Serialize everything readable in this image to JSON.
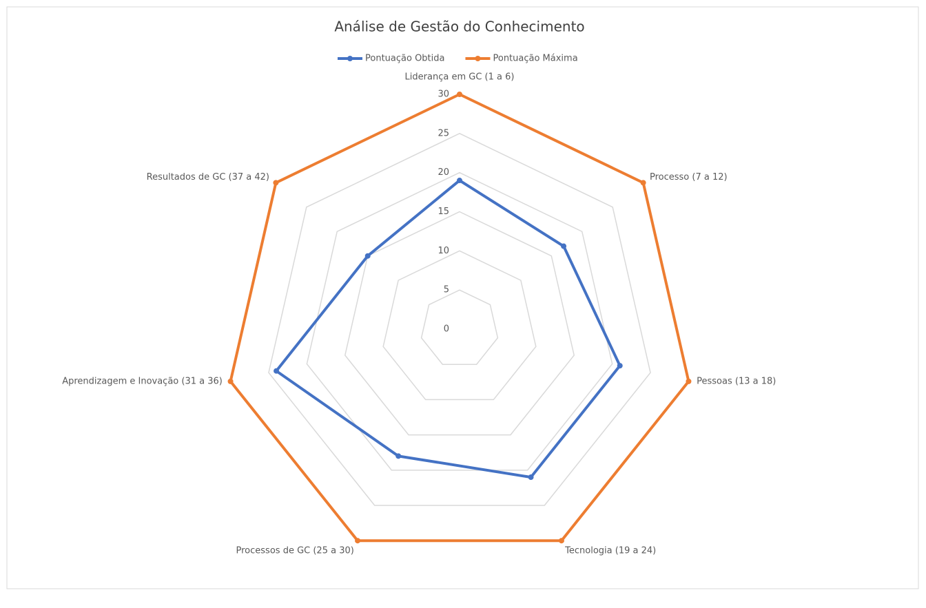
{
  "chart_data": {
    "type": "radar",
    "title": "Análise de Gestão do Conhecimento",
    "categories": [
      "Liderança em GC (1 a 6)",
      "Processo (7 a 12)",
      "Pessoas (13 a 18)",
      "Tecnologia (19 a 24)",
      "Processos de GC (25 a 30)",
      "Aprendizagem e Inovação (31 a 36)",
      "Resultados de GC (37 a 42)"
    ],
    "series": [
      {
        "name": "Pontuação Obtida",
        "color": "#4472c4",
        "values": [
          19,
          17,
          21,
          21,
          18,
          24,
          15
        ]
      },
      {
        "name": "Pontuação Máxima",
        "color": "#ed7d31",
        "values": [
          30,
          30,
          30,
          30,
          30,
          30,
          30
        ]
      }
    ],
    "ylim": [
      0,
      30
    ],
    "yticks": [
      0,
      5,
      10,
      15,
      20,
      25,
      30
    ],
    "grid": true,
    "legend": "top"
  }
}
